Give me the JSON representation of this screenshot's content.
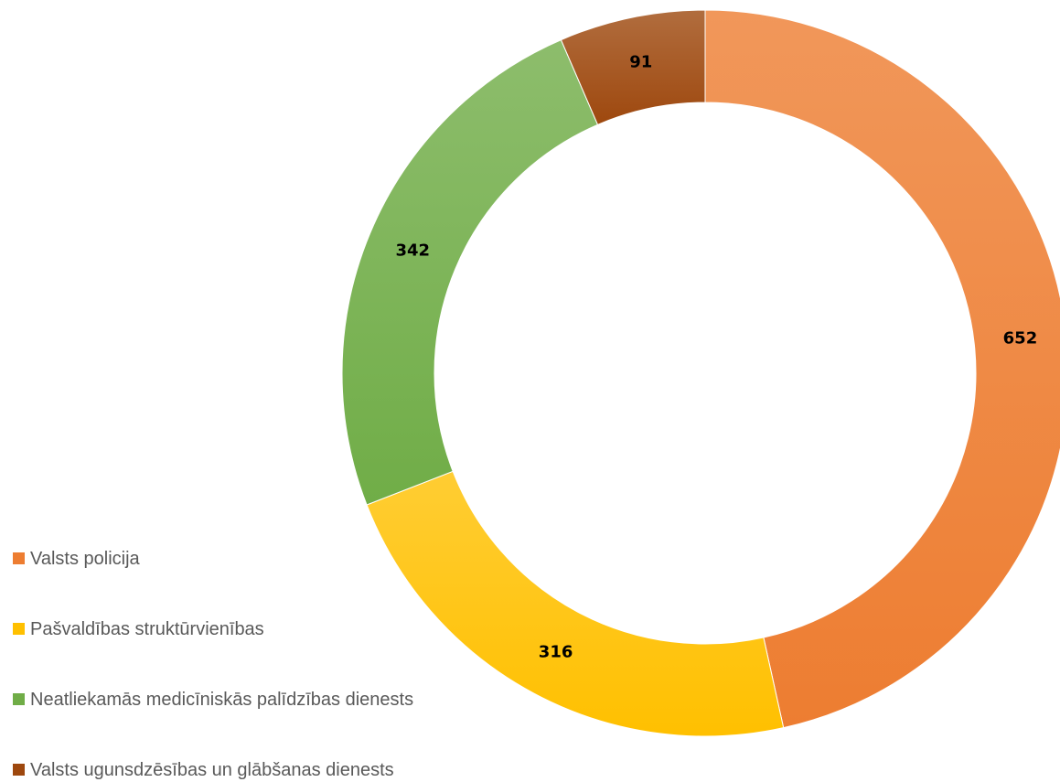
{
  "chart_data": {
    "type": "donut",
    "categories": [
      "Valsts policija",
      "Pašvaldības struktūrvienības",
      "Neatliekamās medicīniskās palīdzības dienests",
      "Valsts ugunsdzēsības un glābšanas dienests"
    ],
    "values": [
      652,
      316,
      342,
      91
    ],
    "colors": [
      "#ed7d31",
      "#ffc000",
      "#70ad47",
      "#9e480e"
    ],
    "legend": "left"
  }
}
